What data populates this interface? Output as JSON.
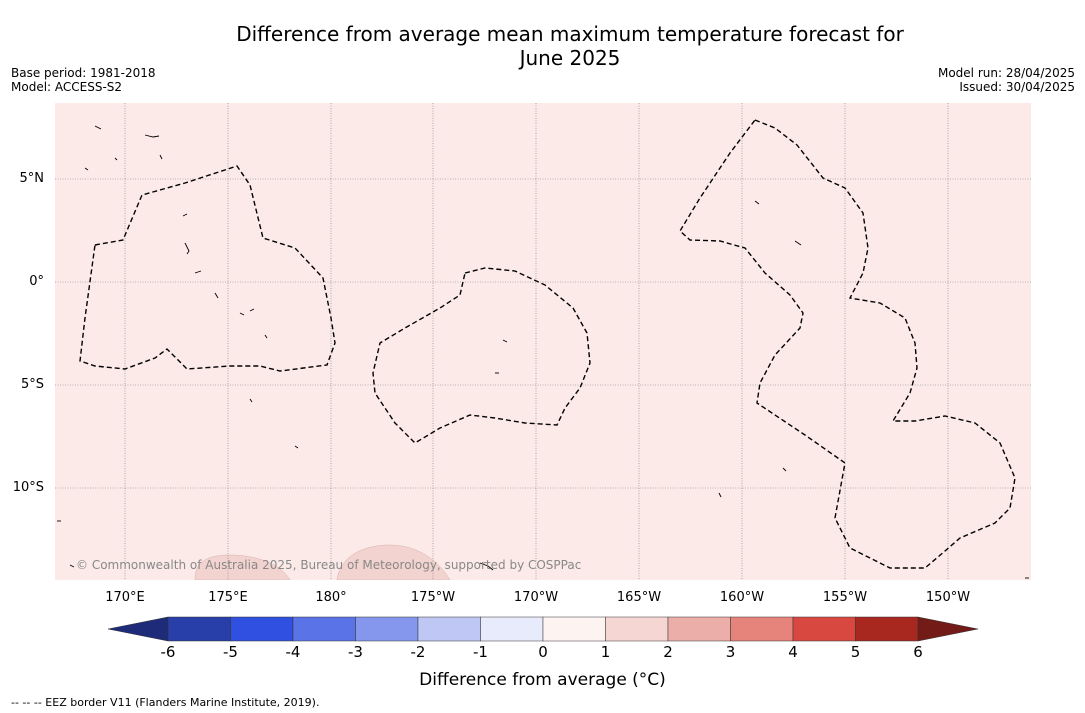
{
  "title_line1": "Difference from average mean maximum temperature forecast for",
  "title_line2": "June 2025",
  "base_period": "Base period: 1981-2018",
  "model": "Model: ACCESS-S2",
  "model_run": "Model run: 28/04/2025",
  "issued": "Issued: 30/04/2025",
  "lat_labels": [
    "5°N",
    "0°",
    "5°S",
    "10°S"
  ],
  "lon_labels": [
    "170°E",
    "175°E",
    "180°",
    "175°W",
    "170°W",
    "165°W",
    "160°W",
    "155°W",
    "150°W"
  ],
  "copyright": "© Commonwealth of Australia 2025, Bureau of Meteorology, supported by COSPPac",
  "colorbar": {
    "ticks": [
      "-6",
      "-5",
      "-4",
      "-3",
      "-2",
      "-1",
      "0",
      "1",
      "2",
      "3",
      "4",
      "5",
      "6"
    ],
    "label": "Difference from average (°C)",
    "colors": [
      "#283ea8",
      "#2f50e0",
      "#5a74e8",
      "#8597ec",
      "#bfc8f5",
      "#e8ebfb",
      "#fdf3f1",
      "#f5d6d2",
      "#ecaea8",
      "#e6837b",
      "#d84840",
      "#a8271f"
    ],
    "under_color": "#1d2b79",
    "over_color": "#731c17",
    "map_fill_color": "#fbeae8",
    "warm_patch_color": "#f3d3cf"
  },
  "legend_text": "--  --  -- EEZ border V11 (Flanders Marine Institute, 2019)."
}
